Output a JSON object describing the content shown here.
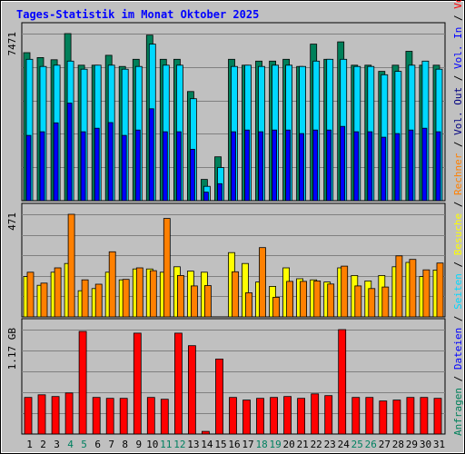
{
  "title": "Tages-Statistik im Monat Oktober 2025",
  "colors": {
    "frame_bg": "#c0c0c0",
    "plot_bg": "#c0c0c0",
    "title": "#0000ff",
    "grid": "#808080",
    "anfragen": "#00805a",
    "dateien": "#0000ff",
    "seiten": "#00d8ff",
    "besuche": "#ffff00",
    "rechner": "#ff8000",
    "vol_out": "#000080",
    "vol_in": "#0000ff",
    "volumen": "#ff0000",
    "weekend": "#008060"
  },
  "chart_data": [
    {
      "type": "bar",
      "panel": "requests",
      "y_tick_label": "7471",
      "ylim": [
        0,
        7471
      ],
      "categories": [
        "1",
        "2",
        "3",
        "4",
        "5",
        "6",
        "7",
        "8",
        "9",
        "10",
        "11",
        "12",
        "13",
        "14",
        "15",
        "16",
        "17",
        "18",
        "19",
        "20",
        "21",
        "22",
        "23",
        "24",
        "25",
        "26",
        "27",
        "28",
        "29",
        "30",
        "31"
      ],
      "weekend_days": [
        "4",
        "5",
        "11",
        "12",
        "18",
        "19",
        "25",
        "26"
      ],
      "series": [
        {
          "name": "Anfragen",
          "values": [
            6620,
            6400,
            6300,
            7471,
            6060,
            6060,
            6500,
            6000,
            6320,
            7400,
            6320,
            6320,
            4880,
            950,
            1960,
            6320,
            6060,
            6240,
            6240,
            6320,
            6000,
            7000,
            6320,
            7100,
            6060,
            6060,
            5780,
            6060,
            6680,
            6060,
            6060
          ]
        },
        {
          "name": "Seiten",
          "values": [
            6320,
            6000,
            6060,
            6240,
            5880,
            6060,
            6060,
            5880,
            6000,
            7000,
            6060,
            6060,
            4560,
            640,
            1480,
            6000,
            6060,
            6000,
            6060,
            6060,
            6000,
            6240,
            6320,
            6320,
            6000,
            6000,
            5630,
            5780,
            6060,
            6240,
            5880
          ]
        },
        {
          "name": "Dateien",
          "values": [
            2920,
            3080,
            3480,
            4360,
            3080,
            3240,
            3490,
            2920,
            3160,
            4110,
            3080,
            3080,
            2300,
            380,
            760,
            3080,
            3160,
            3080,
            3160,
            3160,
            3000,
            3160,
            3160,
            3320,
            3080,
            3080,
            2840,
            3000,
            3160,
            3240,
            3080
          ]
        }
      ],
      "colors": [
        "#00805a",
        "#00d8ff",
        "#0000ff"
      ]
    },
    {
      "type": "bar",
      "panel": "visits",
      "y_tick_label": "471",
      "ylim": [
        0,
        471
      ],
      "categories": [
        "1",
        "2",
        "3",
        "4",
        "5",
        "6",
        "7",
        "8",
        "9",
        "10",
        "11",
        "12",
        "13",
        "14",
        "15",
        "16",
        "17",
        "18",
        "19",
        "20",
        "21",
        "22",
        "23",
        "24",
        "25",
        "26",
        "27",
        "28",
        "29",
        "30",
        "31"
      ],
      "series": [
        {
          "name": "Besuche",
          "values": [
            185,
            145,
            205,
            245,
            120,
            130,
            205,
            170,
            220,
            220,
            205,
            230,
            210,
            205,
            0,
            295,
            245,
            160,
            140,
            225,
            175,
            170,
            160,
            225,
            190,
            165,
            190,
            230,
            250,
            185,
            215
          ]
        },
        {
          "name": "Rechner",
          "values": [
            205,
            155,
            225,
            471,
            170,
            150,
            299,
            172,
            225,
            212,
            452,
            190,
            142,
            144,
            0,
            207,
            111,
            318,
            90,
            163,
            163,
            165,
            151,
            233,
            142,
            130,
            137,
            280,
            264,
            216,
            247
          ]
        }
      ],
      "colors": [
        "#ffff00",
        "#ff8000"
      ]
    },
    {
      "type": "bar",
      "panel": "volume",
      "y_tick_label": "1.17 GB",
      "ylim": [
        0,
        1.17
      ],
      "categories": [
        "1",
        "2",
        "3",
        "4",
        "5",
        "6",
        "7",
        "8",
        "9",
        "10",
        "11",
        "12",
        "13",
        "14",
        "15",
        "16",
        "17",
        "18",
        "19",
        "20",
        "21",
        "22",
        "23",
        "24",
        "25",
        "26",
        "27",
        "28",
        "29",
        "30",
        "31"
      ],
      "series": [
        {
          "name": "Volumen",
          "values": [
            0.41,
            0.44,
            0.42,
            0.46,
            1.15,
            0.41,
            0.4,
            0.4,
            1.13,
            0.41,
            0.39,
            1.13,
            0.99,
            0.03,
            0.84,
            0.41,
            0.38,
            0.4,
            0.41,
            0.42,
            0.4,
            0.45,
            0.43,
            1.17,
            0.41,
            0.41,
            0.37,
            0.38,
            0.41,
            0.41,
            0.4
          ]
        }
      ],
      "colors": [
        "#ff0000"
      ]
    }
  ],
  "legend_right": {
    "top_parts": [
      {
        "text": "Anfragen",
        "color": "#00805a"
      },
      {
        "text": " / ",
        "color": "#000000"
      },
      {
        "text": "Dateien",
        "color": "#0000ff"
      },
      {
        "text": " / ",
        "color": "#000000"
      },
      {
        "text": "Seiten",
        "color": "#00d8ff"
      },
      {
        "text": " / ",
        "color": "#000000"
      },
      {
        "text": "Besuche",
        "color": "#ffff00"
      },
      {
        "text": " / ",
        "color": "#000000"
      },
      {
        "text": "Rechner",
        "color": "#ff8000"
      },
      {
        "text": " / ",
        "color": "#000000"
      },
      {
        "text": "Vol. Out",
        "color": "#000080"
      },
      {
        "text": " / ",
        "color": "#000000"
      },
      {
        "text": "Vol. In",
        "color": "#0000ff"
      },
      {
        "text": " / ",
        "color": "#000000"
      },
      {
        "text": "Volumen",
        "color": "#ff0000"
      }
    ]
  }
}
